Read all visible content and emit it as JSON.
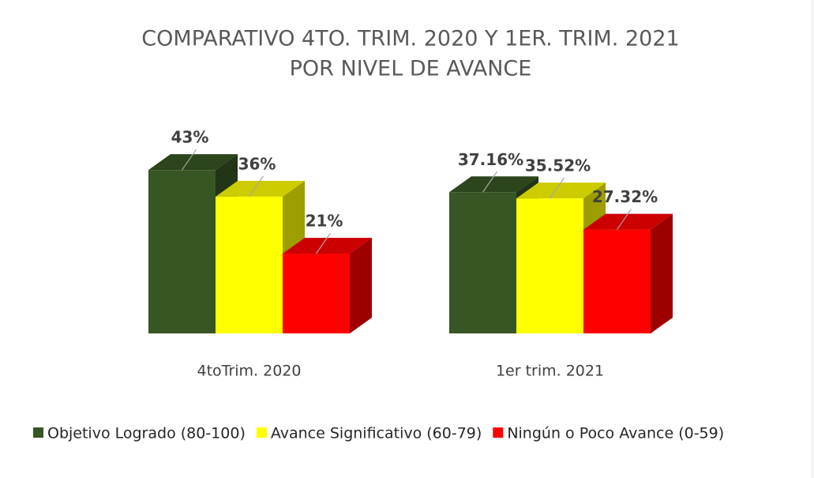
{
  "chart_data": {
    "type": "bar3d",
    "title": [
      "COMPARATIVO 4TO. TRIM. 2020 Y 1ER. TRIM. 2021",
      "POR NIVEL DE AVANCE"
    ],
    "categories": [
      "4toTrim. 2020",
      "1er trim. 2021"
    ],
    "series": [
      {
        "name": "Objetivo Logrado (80-100)",
        "color": "#375623",
        "values": [
          43,
          37.16
        ],
        "value_labels": [
          "43%",
          "37.16%"
        ]
      },
      {
        "name": "Avance Significativo (60-79)",
        "color": "#ffff00",
        "values": [
          36,
          35.52
        ],
        "value_labels": [
          "36%",
          "35.52%"
        ]
      },
      {
        "name": "Ningún o Poco Avance (0-59)",
        "color": "#ff0000",
        "values": [
          21,
          27.32
        ],
        "value_labels": [
          "21%",
          "27.32%"
        ]
      }
    ],
    "legend": "bottom"
  }
}
